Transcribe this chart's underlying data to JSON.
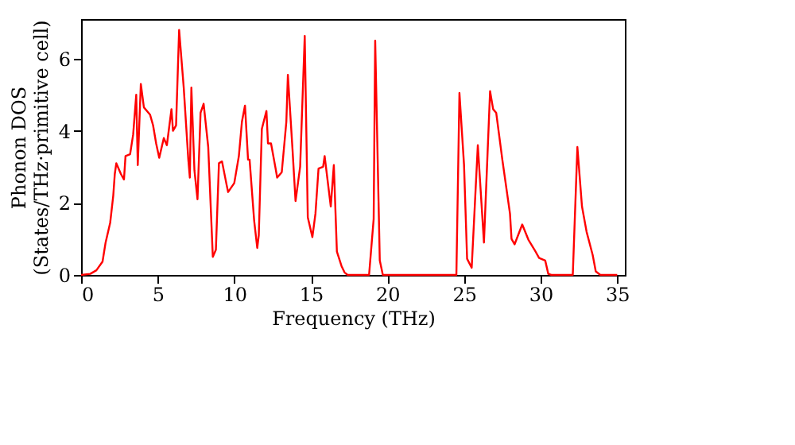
{
  "chart_data": {
    "type": "line",
    "xlabel": "Frequency (THz)",
    "ylabel": "Phonon DOS\n(States/THz·primitive cell)",
    "xlim": [
      0,
      35.5
    ],
    "ylim": [
      0,
      7.1
    ],
    "xticks": [
      0,
      5,
      10,
      15,
      20,
      25,
      30,
      35
    ],
    "yticks": [
      0,
      2,
      4,
      6
    ],
    "grid": false,
    "marker": "none",
    "line_style": "solid",
    "series": [
      {
        "color": "#ff0000",
        "x": [
          0,
          0.6,
          1.0,
          1.4,
          1.6,
          1.9,
          2.1,
          2.2,
          2.3,
          2.6,
          2.8,
          2.9,
          3.2,
          3.4,
          3.6,
          3.7,
          3.9,
          4.1,
          4.5,
          4.7,
          4.9,
          5.1,
          5.4,
          5.6,
          5.9,
          6.0,
          6.2,
          6.4,
          6.7,
          7.0,
          7.1,
          7.2,
          7.4,
          7.6,
          7.8,
          8.0,
          8.3,
          8.6,
          8.8,
          9.0,
          9.2,
          9.5,
          9.6,
          10.0,
          10.3,
          10.5,
          10.7,
          10.9,
          11.0,
          11.3,
          11.5,
          11.6,
          11.8,
          12.1,
          12.2,
          12.4,
          12.7,
          12.8,
          13.1,
          13.4,
          13.5,
          13.8,
          14.0,
          14.3,
          14.6,
          14.8,
          15.1,
          15.3,
          15.5,
          15.8,
          15.9,
          16.3,
          16.5,
          16.7,
          17.0,
          17.2,
          17.4,
          18.8,
          19.1,
          19.2,
          19.5,
          19.7,
          24.5,
          24.7,
          25.0,
          25.2,
          25.5,
          25.9,
          26.3,
          26.7,
          26.9,
          27.1,
          27.5,
          28.0,
          28.1,
          28.3,
          28.8,
          29.2,
          29.6,
          29.9,
          30.3,
          30.5,
          30.7,
          32.1,
          32.4,
          32.7,
          33.0,
          33.4,
          33.6,
          33.9,
          35.0
        ],
        "values": [
          0,
          0.03,
          0.13,
          0.37,
          0.9,
          1.45,
          2.2,
          2.8,
          3.1,
          2.8,
          2.65,
          3.3,
          3.35,
          3.9,
          5.0,
          3.05,
          5.3,
          4.65,
          4.45,
          4.15,
          3.65,
          3.25,
          3.8,
          3.6,
          4.6,
          4.0,
          4.15,
          6.8,
          5.2,
          3.2,
          2.7,
          5.2,
          2.9,
          2.1,
          4.5,
          4.75,
          3.55,
          0.5,
          0.7,
          3.1,
          3.15,
          2.5,
          2.3,
          2.55,
          3.3,
          4.25,
          4.7,
          3.2,
          3.2,
          1.5,
          0.75,
          1.1,
          4.05,
          4.55,
          3.65,
          3.65,
          2.95,
          2.7,
          2.85,
          4.25,
          5.55,
          3.5,
          2.05,
          3.0,
          6.63,
          1.6,
          1.05,
          1.7,
          2.95,
          3.0,
          3.3,
          1.9,
          3.05,
          0.65,
          0.25,
          0.07,
          0,
          0,
          1.55,
          6.5,
          0.4,
          0,
          0,
          5.05,
          3.05,
          0.45,
          0.2,
          3.6,
          0.9,
          5.1,
          4.6,
          4.5,
          3.2,
          1.7,
          1.0,
          0.85,
          1.4,
          0.98,
          0.7,
          0.47,
          0.4,
          0.03,
          0,
          0,
          3.55,
          1.9,
          1.2,
          0.55,
          0.1,
          0,
          0
        ]
      }
    ]
  }
}
